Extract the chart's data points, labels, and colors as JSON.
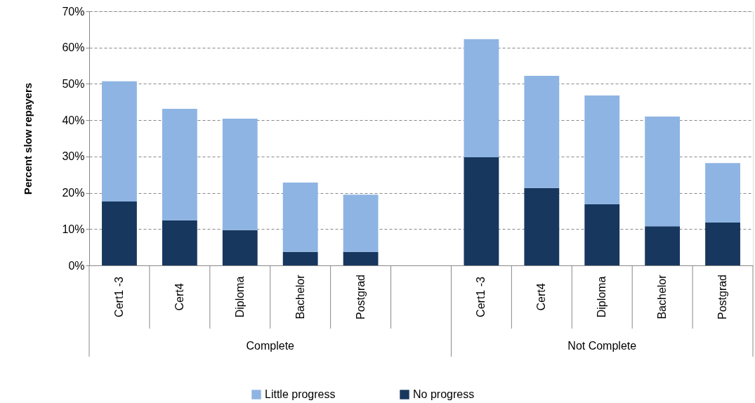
{
  "chart_data": {
    "type": "bar",
    "stacked": true,
    "ylabel": "Percent  slow repayers",
    "categories": [
      "Cert1 -3",
      "Cert4",
      "Diploma",
      "Bachelor",
      "Postgrad",
      null,
      "Cert1 -3",
      "Cert4",
      "Diploma",
      "Bachelor",
      "Postgrad"
    ],
    "series": [
      {
        "name": "No progress",
        "color": "#17375e",
        "values": [
          17.6,
          12.4,
          9.7,
          3.7,
          3.7,
          null,
          29.8,
          21.3,
          16.8,
          10.8,
          11.8
        ]
      },
      {
        "name": "Little progress",
        "color": "#8eb4e3",
        "values": [
          33.1,
          30.7,
          30.7,
          19.1,
          15.8,
          null,
          32.5,
          30.9,
          30.0,
          30.2,
          16.4
        ]
      }
    ],
    "annotations": [
      "Complete",
      "Not Complete"
    ],
    "ylim": [
      0,
      70
    ],
    "yticks": [
      {
        "value": 0,
        "label": "0%"
      },
      {
        "value": 10,
        "label": "10%"
      },
      {
        "value": 20,
        "label": "20%"
      },
      {
        "value": 30,
        "label": "30%"
      },
      {
        "value": 40,
        "label": "40%"
      },
      {
        "value": 50,
        "label": "50%"
      },
      {
        "value": 60,
        "label": "60%"
      },
      {
        "value": 70,
        "label": "70%"
      }
    ],
    "grid": "y",
    "legend": "bottom"
  }
}
